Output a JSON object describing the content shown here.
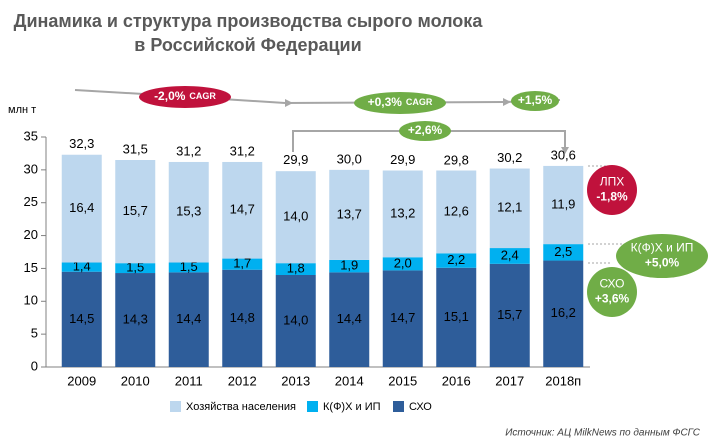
{
  "chart_data": {
    "type": "stacked_bar",
    "title": [
      "Динамика и структура производства сырого молока",
      "в Российской Федерации"
    ],
    "y_label": "млн т",
    "source": "Источник: АЦ MilkNews по данным ФСГС",
    "categories": [
      "2009",
      "2010",
      "2011",
      "2012",
      "2013",
      "2014",
      "2015",
      "2016",
      "2017",
      "2018п"
    ],
    "series": [
      {
        "name": "Хозяйства населения",
        "color": "#bdd7ee",
        "label_color": "#000000",
        "values": [
          16.4,
          15.7,
          15.3,
          14.7,
          14.0,
          13.7,
          13.2,
          12.6,
          12.1,
          11.9
        ],
        "value_labels": [
          "16,4",
          "15,7",
          "15,3",
          "14,7",
          "14,0",
          "13,7",
          "13,2",
          "12,6",
          "12,1",
          "11,9"
        ]
      },
      {
        "name": "К(Ф)Х и ИП",
        "color": "#00b0f0",
        "label_color": "#ffffff",
        "values": [
          1.4,
          1.5,
          1.5,
          1.7,
          1.8,
          1.9,
          2.0,
          2.2,
          2.4,
          2.5
        ],
        "value_labels": [
          "1,4",
          "1,5",
          "1,5",
          "1,7",
          "1,8",
          "1,9",
          "2,0",
          "2,2",
          "2,4",
          "2,5"
        ]
      },
      {
        "name": "СХО",
        "color": "#2e5d9a",
        "label_color": "#ffffff",
        "values": [
          14.5,
          14.3,
          14.4,
          14.8,
          14.0,
          14.4,
          14.7,
          15.1,
          15.7,
          16.2
        ],
        "value_labels": [
          "14,5",
          "14,3",
          "14,4",
          "14,8",
          "14,0",
          "14,4",
          "14,7",
          "15,1",
          "15,7",
          "16,2"
        ]
      }
    ],
    "totals": {
      "values": [
        32.3,
        31.5,
        31.2,
        31.2,
        29.9,
        30.0,
        29.9,
        29.8,
        30.2,
        30.6
      ],
      "value_labels": [
        "32,3",
        "31,5",
        "31,2",
        "31,2",
        "29,9",
        "30,0",
        "29,9",
        "29,8",
        "30,2",
        "30,6"
      ]
    },
    "ylim": [
      0,
      35
    ],
    "yticks": [
      0,
      5,
      10,
      15,
      20,
      25,
      30,
      35
    ],
    "annotations": [
      {
        "lines": [
          "-2,0%",
          "CAGR"
        ],
        "color": "#c0123c"
      },
      {
        "lines": [
          "+0,3%",
          "CAGR"
        ],
        "color": "#70ad47"
      },
      {
        "lines": [
          "+1,5%"
        ],
        "color": "#70ad47"
      },
      {
        "lines": [
          "+2,6%"
        ],
        "color": "#70ad47"
      },
      {
        "lines": [
          "ЛПХ",
          "-1,8%"
        ],
        "color": "#c0123c"
      },
      {
        "lines": [
          "К(Ф)Х и ИП",
          "+5,0%"
        ],
        "color": "#70ad47"
      },
      {
        "lines": [
          "СХО",
          "+3,6%"
        ],
        "color": "#70ad47"
      }
    ]
  }
}
